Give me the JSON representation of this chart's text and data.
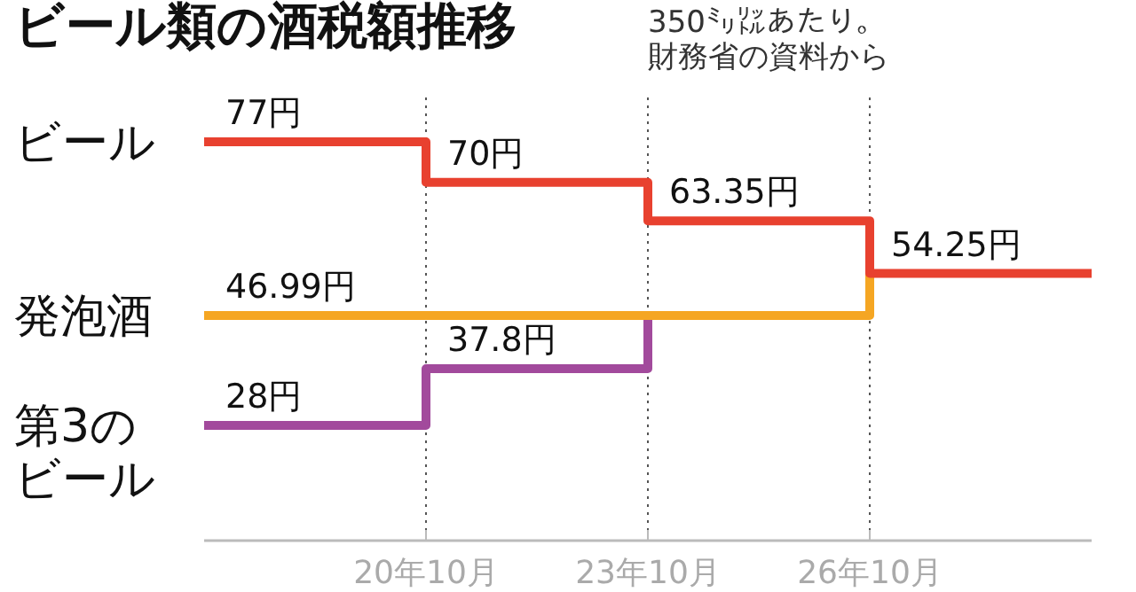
{
  "chart_data": {
    "type": "step",
    "title": "ビール類の酒税額推移",
    "annotations": [
      "350㍉㍑あたり。財務省の資料から"
    ],
    "categories": [
      null,
      "20年10月",
      "23年10月",
      "26年10月",
      null
    ],
    "series": [
      {
        "name": "ビール",
        "color": "#e8412f",
        "values": [
          77,
          70,
          63.35,
          54.25,
          54.25
        ],
        "value_labels": [
          "77円",
          "70円",
          "63.35円",
          "54.25円",
          null
        ]
      },
      {
        "name": "発泡酒",
        "color": "#f5a623",
        "values": [
          46.99,
          46.99,
          46.99,
          54.25,
          null
        ],
        "value_labels": [
          "46.99円",
          null,
          null,
          null,
          null
        ]
      },
      {
        "name": "第3のビール",
        "color": "#a24a9c",
        "values": [
          28,
          37.8,
          46.99,
          null,
          null
        ],
        "value_labels": [
          "28円",
          "37.8円",
          null,
          null,
          null
        ]
      }
    ],
    "grid": "x",
    "tick_labels": "x"
  }
}
